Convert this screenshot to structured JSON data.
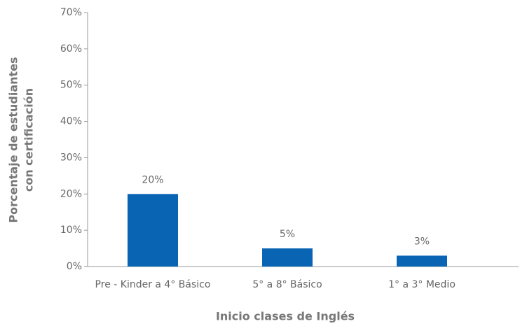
{
  "chart_data": {
    "type": "bar",
    "ylabel": [
      "Porcentaje de estudiantes",
      "con certificación"
    ],
    "xlabel": "Inicio clases de Inglés",
    "categories": [
      "Pre - Kinder a 4° Básico",
      "5° a 8° Básico",
      "1° a 3° Medio"
    ],
    "values": [
      20,
      5,
      3
    ],
    "value_labels": [
      "20%",
      "5%",
      "3%"
    ],
    "color": "#0a64b4",
    "ylim": [
      0,
      70
    ],
    "yticks": [
      {
        "value": 0,
        "label": "0%"
      },
      {
        "value": 10,
        "label": "10%"
      },
      {
        "value": 20,
        "label": "20%"
      },
      {
        "value": 30,
        "label": "30%"
      },
      {
        "value": 40,
        "label": "40%"
      },
      {
        "value": 50,
        "label": "50%"
      },
      {
        "value": 60,
        "label": "60%"
      },
      {
        "value": 70,
        "label": "70%"
      }
    ]
  }
}
